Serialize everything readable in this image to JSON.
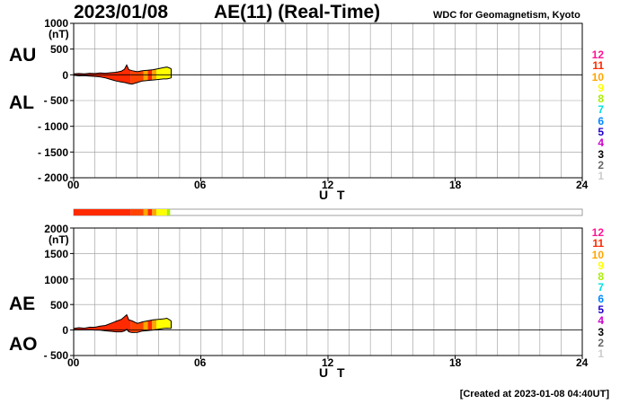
{
  "header": {
    "date": "2023/01/08",
    "title": "AE(11) (Real-Time)",
    "organization": "WDC for Geomagnetism, Kyoto"
  },
  "footer": {
    "created": "[Created at 2023-01-08 04:40UT]"
  },
  "legend": {
    "entries": [
      {
        "label": "12",
        "color": "#ff1493"
      },
      {
        "label": "11",
        "color": "#ff2a00"
      },
      {
        "label": "10",
        "color": "#ffa500"
      },
      {
        "label": "9",
        "color": "#ffff00"
      },
      {
        "label": "8",
        "color": "#aaee00"
      },
      {
        "label": "7",
        "color": "#00e0e0"
      },
      {
        "label": "6",
        "color": "#0088ff"
      },
      {
        "label": "5",
        "color": "#2200cc"
      },
      {
        "label": "4",
        "color": "#cc00cc"
      },
      {
        "label": "3",
        "color": "#000000"
      },
      {
        "label": "2",
        "color": "#666666"
      },
      {
        "label": "1",
        "color": "#cccccc"
      }
    ]
  },
  "chart_data": [
    {
      "type": "area",
      "name": "AU/AL",
      "series_labels": [
        "AU",
        "AL"
      ],
      "unit": "(nT)",
      "xlabel": "U T",
      "xlim": [
        0,
        24
      ],
      "ylim": [
        -2000,
        1000
      ],
      "yticks": [
        "1000",
        "500",
        "0",
        "- 500",
        "- 1000",
        "- 1500",
        "- 2000"
      ],
      "ytick_values": [
        1000,
        500,
        0,
        -500,
        -1000,
        -1500,
        -2000
      ],
      "xticks": [
        "00",
        "06",
        "12",
        "18",
        "24"
      ],
      "xtick_values": [
        0,
        6,
        12,
        18,
        24
      ],
      "grid": true,
      "series": [
        {
          "name": "AU",
          "x": [
            0,
            0.25,
            0.5,
            0.75,
            1.0,
            1.25,
            1.5,
            1.75,
            2.0,
            2.25,
            2.4,
            2.5,
            2.6,
            2.75,
            3.0,
            3.25,
            3.5,
            3.75,
            4.0,
            4.25,
            4.4,
            4.6
          ],
          "values": [
            20,
            25,
            20,
            30,
            25,
            35,
            30,
            40,
            50,
            70,
            110,
            190,
            100,
            80,
            60,
            80,
            90,
            100,
            120,
            140,
            150,
            120
          ]
        },
        {
          "name": "AL",
          "x": [
            0,
            0.25,
            0.5,
            0.75,
            1.0,
            1.25,
            1.5,
            1.75,
            2.0,
            2.25,
            2.4,
            2.5,
            2.6,
            2.75,
            3.0,
            3.25,
            3.5,
            3.75,
            4.0,
            4.25,
            4.4,
            4.6
          ],
          "values": [
            -10,
            -20,
            -15,
            -25,
            -30,
            -40,
            -60,
            -90,
            -120,
            -140,
            -150,
            -160,
            -170,
            -180,
            -150,
            -120,
            -110,
            -100,
            -90,
            -80,
            -80,
            -60
          ]
        }
      ]
    },
    {
      "type": "area",
      "name": "AE/AO",
      "series_labels": [
        "AE",
        "AO"
      ],
      "unit": "(nT)",
      "xlabel": "U T",
      "xlim": [
        0,
        24
      ],
      "ylim": [
        -500,
        2000
      ],
      "yticks": [
        "2000",
        "1500",
        "1000",
        "500",
        "0",
        "- 500"
      ],
      "ytick_values": [
        2000,
        1500,
        1000,
        500,
        0,
        -500
      ],
      "xticks": [
        "00",
        "06",
        "12",
        "18",
        "24"
      ],
      "xtick_values": [
        0,
        6,
        12,
        18,
        24
      ],
      "grid": true,
      "series": [
        {
          "name": "AE",
          "x": [
            0,
            0.25,
            0.5,
            0.75,
            1.0,
            1.25,
            1.5,
            1.75,
            2.0,
            2.25,
            2.4,
            2.5,
            2.6,
            2.75,
            3.0,
            3.25,
            3.5,
            3.75,
            4.0,
            4.25,
            4.4,
            4.6
          ],
          "values": [
            30,
            45,
            35,
            55,
            55,
            75,
            90,
            130,
            170,
            210,
            260,
            300,
            200,
            180,
            130,
            160,
            180,
            200,
            210,
            220,
            230,
            180
          ]
        },
        {
          "name": "AO",
          "x": [
            0,
            0.25,
            0.5,
            0.75,
            1.0,
            1.25,
            1.5,
            1.75,
            2.0,
            2.25,
            2.4,
            2.5,
            2.6,
            2.75,
            3.0,
            3.25,
            3.5,
            3.75,
            4.0,
            4.25,
            4.4,
            4.6
          ],
          "values": [
            5,
            5,
            3,
            3,
            0,
            -3,
            -15,
            -25,
            -35,
            -35,
            -20,
            15,
            -35,
            -50,
            -45,
            -20,
            -10,
            0,
            15,
            30,
            35,
            30
          ]
        }
      ]
    }
  ],
  "station_bar": {
    "segments": [
      {
        "x0": 0,
        "x1": 2.7,
        "color": "#ff2a00"
      },
      {
        "x0": 2.7,
        "x1": 3.3,
        "color": "#ff4400"
      },
      {
        "x0": 3.3,
        "x1": 3.5,
        "color": "#ffa500"
      },
      {
        "x0": 3.5,
        "x1": 3.7,
        "color": "#ff2a00"
      },
      {
        "x0": 3.7,
        "x1": 3.9,
        "color": "#ffa500"
      },
      {
        "x0": 3.9,
        "x1": 4.4,
        "color": "#ffff00"
      },
      {
        "x0": 4.4,
        "x1": 4.55,
        "color": "#aaee00"
      }
    ]
  },
  "fill_segments": [
    {
      "x0": 0,
      "x1": 2.7,
      "color": "#ff2a00"
    },
    {
      "x0": 2.7,
      "x1": 3.3,
      "color": "#ff4400"
    },
    {
      "x0": 3.3,
      "x1": 3.5,
      "color": "#ffa500"
    },
    {
      "x0": 3.5,
      "x1": 3.7,
      "color": "#ff2a00"
    },
    {
      "x0": 3.7,
      "x1": 3.9,
      "color": "#ffa500"
    },
    {
      "x0": 3.9,
      "x1": 4.6,
      "color": "#ffff00"
    }
  ]
}
